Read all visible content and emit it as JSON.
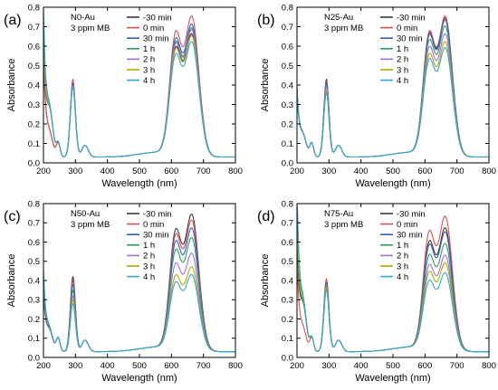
{
  "chart_data": [
    {
      "type": "line",
      "panel_label": "(a)",
      "annotation": [
        "N0-Au",
        "3 ppm MB"
      ],
      "xlabel": "Wavelength (nm)",
      "ylabel": "Absorbance",
      "xlim": [
        200,
        800
      ],
      "ylim": [
        0,
        0.8
      ],
      "xticks": [
        200,
        300,
        400,
        500,
        600,
        700,
        800
      ],
      "yticks": [
        0.0,
        0.1,
        0.2,
        0.3,
        0.4,
        0.5,
        0.6,
        0.7,
        0.8
      ],
      "peak_664": [
        0.62,
        0.71,
        0.67,
        0.65,
        0.64,
        0.61,
        0.58
      ],
      "peak_292": [
        0.37,
        0.4,
        0.38,
        0.37,
        0.37,
        0.36,
        0.36
      ],
      "uv_start": [
        0.5,
        0.5,
        0.6,
        0.55,
        0.6,
        0.65,
        0.75
      ],
      "series": [
        {
          "name": "-30 min",
          "color": "#3a3a3a"
        },
        {
          "name": "0 min",
          "color": "#d9534f"
        },
        {
          "name": "30 min",
          "color": "#2f5fc4"
        },
        {
          "name": "1 h",
          "color": "#2e9e62"
        },
        {
          "name": "2 h",
          "color": "#a66be0"
        },
        {
          "name": "3 h",
          "color": "#b8a600"
        },
        {
          "name": "4 h",
          "color": "#2ea8d8"
        }
      ]
    },
    {
      "type": "line",
      "panel_label": "(b)",
      "annotation": [
        "N25-Au",
        "3 ppm MB"
      ],
      "xlabel": "Wavelength (nm)",
      "ylabel": "Absorbance",
      "xlim": [
        200,
        800
      ],
      "ylim": [
        0,
        0.8
      ],
      "xticks": [
        200,
        300,
        400,
        500,
        600,
        700,
        800
      ],
      "yticks": [
        0.0,
        0.1,
        0.2,
        0.3,
        0.4,
        0.5,
        0.6,
        0.7,
        0.8
      ],
      "peak_664": [
        0.7,
        0.71,
        0.69,
        0.66,
        0.62,
        0.58,
        0.55
      ],
      "peak_292": [
        0.4,
        0.39,
        0.38,
        0.37,
        0.36,
        0.34,
        0.33
      ],
      "uv_start": [
        0.35,
        0.34,
        0.34,
        0.33,
        0.33,
        0.32,
        0.32
      ],
      "series": [
        {
          "name": "-30 min",
          "color": "#3a3a3a"
        },
        {
          "name": "0 min",
          "color": "#d9534f"
        },
        {
          "name": "30 min",
          "color": "#2f5fc4"
        },
        {
          "name": "1 h",
          "color": "#2e9e62"
        },
        {
          "name": "2 h",
          "color": "#a66be0"
        },
        {
          "name": "3 h",
          "color": "#b8a600"
        },
        {
          "name": "4 h",
          "color": "#2ea8d8"
        }
      ]
    },
    {
      "type": "line",
      "panel_label": "(c)",
      "annotation": [
        "N50-Au",
        "3 ppm MB"
      ],
      "xlabel": "Wavelength (nm)",
      "ylabel": "Absorbance",
      "xlim": [
        200,
        800
      ],
      "ylim": [
        0,
        0.8
      ],
      "xticks": [
        200,
        300,
        400,
        500,
        600,
        700,
        800
      ],
      "yticks": [
        0.0,
        0.1,
        0.2,
        0.3,
        0.4,
        0.5,
        0.6,
        0.7,
        0.8
      ],
      "peak_664": [
        0.7,
        0.67,
        0.63,
        0.58,
        0.5,
        0.43,
        0.39
      ],
      "peak_292": [
        0.39,
        0.37,
        0.35,
        0.32,
        0.29,
        0.27,
        0.25
      ],
      "uv_start": [
        0.3,
        0.3,
        0.32,
        0.35,
        0.38,
        0.4,
        0.42
      ],
      "series": [
        {
          "name": "-30 min",
          "color": "#3a3a3a"
        },
        {
          "name": "0 min",
          "color": "#d9534f"
        },
        {
          "name": "30 min",
          "color": "#2f5fc4"
        },
        {
          "name": "1 h",
          "color": "#2e9e62"
        },
        {
          "name": "2 h",
          "color": "#a66be0"
        },
        {
          "name": "3 h",
          "color": "#b8a600"
        },
        {
          "name": "4 h",
          "color": "#2ea8d8"
        }
      ]
    },
    {
      "type": "line",
      "panel_label": "(d)",
      "annotation": [
        "N75-Au",
        "3 ppm MB"
      ],
      "xlabel": "Wavelength (nm)",
      "ylabel": "Absorbance",
      "xlim": [
        200,
        800
      ],
      "ylim": [
        0,
        0.8
      ],
      "xticks": [
        200,
        300,
        400,
        500,
        600,
        700,
        800
      ],
      "yticks": [
        0.0,
        0.1,
        0.2,
        0.3,
        0.4,
        0.5,
        0.6,
        0.7,
        0.8
      ],
      "peak_664": [
        0.63,
        0.69,
        0.61,
        0.55,
        0.49,
        0.45,
        0.4
      ],
      "peak_292": [
        0.36,
        0.38,
        0.36,
        0.35,
        0.34,
        0.33,
        0.32
      ],
      "uv_start": [
        0.55,
        0.45,
        0.8,
        0.6,
        0.75,
        0.7,
        0.85
      ],
      "series": [
        {
          "name": "-30 min",
          "color": "#3a3a3a"
        },
        {
          "name": "0 min",
          "color": "#d9534f"
        },
        {
          "name": "30 min",
          "color": "#2f5fc4"
        },
        {
          "name": "1 h",
          "color": "#2e9e62"
        },
        {
          "name": "2 h",
          "color": "#a66be0"
        },
        {
          "name": "3 h",
          "color": "#b8a600"
        },
        {
          "name": "4 h",
          "color": "#2ea8d8"
        }
      ]
    }
  ]
}
